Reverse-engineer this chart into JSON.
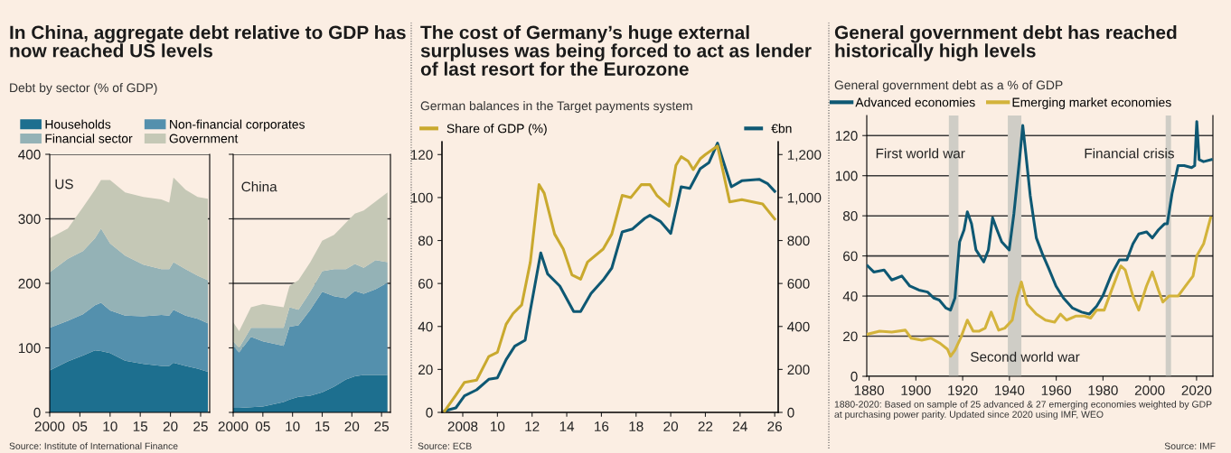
{
  "chart_data": [
    {
      "type": "area",
      "stacked": true,
      "title": "In China, aggregate debt relative to GDP has now reached US levels",
      "subtitle": "Debt by sector (% of GDP)",
      "x": [
        2000,
        2003,
        2005.5,
        2007.5,
        2008.5,
        2010,
        2012.5,
        2015.5,
        2018.5,
        2019.8,
        2020.5,
        2022.5,
        2024.5,
        2026.2
      ],
      "series": [
        {
          "name": "Households",
          "color": "#1d6f8f",
          "values": [
            65,
            79,
            88,
            96,
            95,
            92,
            80,
            75,
            72,
            72,
            77,
            72,
            68,
            63
          ]
        },
        {
          "name": "Non-financial corporates",
          "color": "#5490ad",
          "values": [
            66,
            63,
            64,
            70,
            75,
            66,
            70,
            74,
            79,
            78,
            82,
            78,
            77,
            75
          ]
        },
        {
          "name": "Financial sector",
          "color": "#94b2b6",
          "values": [
            86,
            96,
            98,
            104,
            115,
            104,
            93,
            80,
            71,
            72,
            74,
            72,
            67,
            67
          ]
        },
        {
          "name": "Government",
          "color": "#c5c8b6",
          "values": [
            53,
            47,
            68,
            75,
            75,
            98,
            98,
            105,
            108,
            103,
            131,
            123,
            122,
            126
          ]
        }
      ],
      "xlim": [
        2000,
        2026.5
      ],
      "xticks": [
        {
          "value": 2000,
          "label": "2000"
        },
        {
          "value": 2005,
          "label": "05"
        },
        {
          "value": 2010,
          "label": "10"
        },
        {
          "value": 2015,
          "label": "15"
        },
        {
          "value": 2020,
          "label": "20"
        },
        {
          "value": 2025,
          "label": "25"
        }
      ],
      "ylim": [
        0,
        400
      ],
      "yticks": [
        0,
        100,
        200,
        300,
        400
      ],
      "grid": "y",
      "legend": "top",
      "annotations": [
        "US",
        "Source: Institute of International Finance"
      ]
    },
    {
      "type": "area",
      "stacked": true,
      "x": [
        2000,
        2001,
        2003,
        2005,
        2008.5,
        2009.5,
        2011,
        2013,
        2015,
        2017,
        2019,
        2020.5,
        2022,
        2024,
        2026
      ],
      "series": [
        {
          "color": "#1d6f8f",
          "values": [
            7,
            7,
            8,
            9,
            16,
            20,
            24,
            26,
            31,
            40,
            51,
            56,
            58,
            58,
            58
          ]
        },
        {
          "color": "#5490ad",
          "values": [
            96,
            86,
            109,
            101,
            87,
            113,
            111,
            133,
            156,
            140,
            126,
            132,
            126,
            133,
            143
          ]
        },
        {
          "color": "#94b2b6",
          "values": [
            7,
            7,
            14,
            21,
            28,
            30,
            24,
            28,
            32,
            42,
            45,
            42,
            40,
            45,
            32
          ]
        },
        {
          "color": "#c5c8b6",
          "values": [
            30,
            26,
            32,
            37,
            32,
            33,
            46,
            46,
            47,
            53,
            72,
            78,
            89,
            91,
            108
          ]
        }
      ],
      "xlim": [
        2000,
        2026.5
      ],
      "xticks": [
        {
          "value": 2000,
          "label": "2000"
        },
        {
          "value": 2005,
          "label": "05"
        },
        {
          "value": 2010,
          "label": "10"
        },
        {
          "value": 2015,
          "label": "15"
        },
        {
          "value": 2020,
          "label": "20"
        },
        {
          "value": 2025,
          "label": "25"
        }
      ],
      "ylim": [
        0,
        400
      ],
      "yticks": [
        0,
        100,
        200,
        300,
        400
      ],
      "grid": "y",
      "tick_labels": "x",
      "annotations": [
        "China"
      ]
    },
    {
      "type": "line",
      "title": "The cost of Germany’s huge external surpluses was being forced to act as lender of last resort for the Eurozone",
      "subtitle": "German balances in the Target payments system",
      "series": [
        {
          "name": "Share of GDP (%)",
          "color": "#c9a92e",
          "x": [
            2006.96,
            2007.6,
            2008.1,
            2008.8,
            2009.5,
            2010.0,
            2010.5,
            2010.9,
            2011.4,
            2011.9,
            2012.4,
            2012.7,
            2013.3,
            2013.8,
            2014.3,
            2014.8,
            2015.2,
            2016.1,
            2016.6,
            2017.2,
            2017.7,
            2018.3,
            2018.8,
            2019.2,
            2019.9,
            2020.3,
            2020.6,
            2021.0,
            2021.3,
            2021.7,
            2022.0,
            2022.7,
            2023.4,
            2024.1,
            2025.3,
            2026.0
          ],
          "values": [
            0.7,
            8,
            14,
            15,
            26,
            28,
            41,
            46,
            50,
            70,
            106,
            102,
            83,
            76,
            64,
            62,
            70,
            76,
            83,
            101,
            100,
            106,
            106,
            101,
            96,
            115,
            119,
            117,
            113,
            118,
            120,
            124,
            98,
            99,
            97,
            90
          ]
        },
        {
          "name": "€bn",
          "axis": "y2",
          "color": "#0e5873",
          "x": [
            2006.96,
            2007.6,
            2008.1,
            2008.8,
            2009.5,
            2010.0,
            2010.5,
            2011.0,
            2011.6,
            2011.9,
            2012.5,
            2012.9,
            2013.6,
            2014.4,
            2014.8,
            2015.4,
            2016.1,
            2016.6,
            2017.2,
            2017.8,
            2018.5,
            2018.8,
            2019.4,
            2020.0,
            2020.6,
            2021.1,
            2021.7,
            2022.2,
            2022.7,
            2023.5,
            2024.1,
            2025.1,
            2025.6,
            2026.0
          ],
          "values": [
            7,
            21,
            77,
            105,
            154,
            161,
            245,
            308,
            336,
            476,
            742,
            644,
            588,
            469,
            469,
            553,
            616,
            672,
            840,
            854,
            903,
            917,
            889,
            833,
            1050,
            1043,
            1134,
            1162,
            1253,
            1050,
            1078,
            1085,
            1064,
            1029
          ]
        }
      ],
      "xlim": [
        2006.8,
        2026.2
      ],
      "xticks": [
        {
          "value": 2008,
          "label": "2008"
        },
        {
          "value": 2010,
          "label": "10"
        },
        {
          "value": 2012,
          "label": "12"
        },
        {
          "value": 2014,
          "label": "14"
        },
        {
          "value": 2016,
          "label": "16"
        },
        {
          "value": 2018,
          "label": "18"
        },
        {
          "value": 2020,
          "label": "20"
        },
        {
          "value": 2022,
          "label": "22"
        },
        {
          "value": 2024,
          "label": "24"
        },
        {
          "value": 2026,
          "label": "26"
        }
      ],
      "ylim": [
        0,
        126
      ],
      "yticks": [
        0,
        20,
        40,
        60,
        80,
        100,
        120
      ],
      "y2lim": [
        0,
        1260
      ],
      "y2ticks": [
        0,
        200,
        400,
        600,
        800,
        {
          "value": 1000,
          "label": "1,000"
        },
        {
          "value": 1200,
          "label": "1,200"
        }
      ],
      "legend": "top",
      "annotations": [
        "Source: ECB"
      ]
    },
    {
      "type": "line",
      "title": "General government debt has reached historically high levels",
      "subtitle": "General government debt as a % of GDP",
      "series": [
        {
          "name": "Advanced economies",
          "color": "#0e5873",
          "x": [
            1879.4,
            1882,
            1886.4,
            1889.7,
            1894,
            1897.4,
            1901.3,
            1905,
            1907.7,
            1910,
            1912.9,
            1914.8,
            1916.7,
            1918.7,
            1920.6,
            1922,
            1923.8,
            1925.7,
            1929,
            1931,
            1932.8,
            1934.7,
            1936.7,
            1939.9,
            1941.9,
            1944.4,
            1945.7,
            1947,
            1948.9,
            1951.5,
            1954.1,
            1956.7,
            1959.9,
            1963.1,
            1967,
            1970.9,
            1974.1,
            1977.3,
            1979.9,
            1983.7,
            1987,
            1990.2,
            1992.8,
            1995.3,
            1998.6,
            2001.1,
            2003.7,
            2006.3,
            2007.5,
            2009.5,
            2012.1,
            2014.7,
            2017.9,
            2019.2,
            2020.1,
            2021.1,
            2023,
            2026.3
          ],
          "values": [
            55,
            52,
            53,
            48,
            50,
            45,
            43,
            42,
            39,
            38,
            34,
            33,
            39,
            67,
            73,
            82,
            76,
            63,
            57,
            63,
            79,
            73,
            67,
            63,
            81,
            109,
            125,
            111,
            90,
            69,
            61,
            54,
            45,
            39,
            34,
            32,
            31,
            35,
            40,
            51,
            58,
            58,
            66,
            71,
            72,
            69,
            73,
            76,
            76,
            91,
            105,
            105,
            104,
            105,
            127,
            108,
            107,
            108
          ]
        },
        {
          "name": "Emerging market economies",
          "color": "#d3b33b",
          "x": [
            1879.4,
            1884.5,
            1889.7,
            1895.5,
            1898,
            1902.5,
            1906.4,
            1910.3,
            1913.5,
            1914.8,
            1916.7,
            1919.3,
            1922,
            1924.5,
            1927.1,
            1929.6,
            1932.2,
            1935.4,
            1938,
            1941.2,
            1943.1,
            1945.1,
            1947.6,
            1951.5,
            1955.4,
            1959.3,
            1961.8,
            1964.4,
            1968.3,
            1972.1,
            1974.7,
            1977.3,
            1980.5,
            1983.7,
            1987.6,
            1989.5,
            1992.8,
            1995.3,
            1998.6,
            2001.1,
            2003.7,
            2005.6,
            2008.2,
            2012.1,
            2015.3,
            2018.5,
            2020.1,
            2023,
            2026
          ],
          "values": [
            21,
            22.5,
            22,
            23,
            19,
            18,
            19,
            16.5,
            13.5,
            10,
            13,
            19.5,
            28,
            22.5,
            22.5,
            24,
            32,
            23,
            24,
            28,
            39,
            47,
            36,
            31,
            28,
            27,
            31,
            28,
            30,
            30,
            29,
            33,
            33,
            43,
            55,
            53,
            40,
            33,
            45,
            52,
            43,
            37,
            40,
            40,
            45,
            50,
            60,
            66,
            79
          ]
        }
      ],
      "xlim": [
        1879,
        2027
      ],
      "xticks": [
        1880,
        1900,
        1920,
        1940,
        1960,
        1980,
        2000,
        2020
      ],
      "ylim": [
        0,
        130
      ],
      "yticks": [
        0,
        20,
        40,
        60,
        80,
        100,
        120
      ],
      "grid": "y",
      "legend": "top left",
      "bands": [
        {
          "axis": "x",
          "from": 1914.1,
          "to": 1918.2,
          "color": "#cfcdc6",
          "label": "First world war"
        },
        {
          "axis": "x",
          "from": 1939.3,
          "to": 1945.1,
          "color": "#cfcdc6",
          "label": "Second world war"
        },
        {
          "axis": "x",
          "from": 2006.8,
          "to": 2009.1,
          "color": "#cfcdc6",
          "label": "Financial crisis"
        }
      ],
      "annotations": [
        "1880-2020: Based on sample of 25 advanced & 27 emerging economies weighted by GDP at purchasing power parity. Updated since 2020 using IMF, WEO",
        "Source: IMF"
      ]
    }
  ]
}
